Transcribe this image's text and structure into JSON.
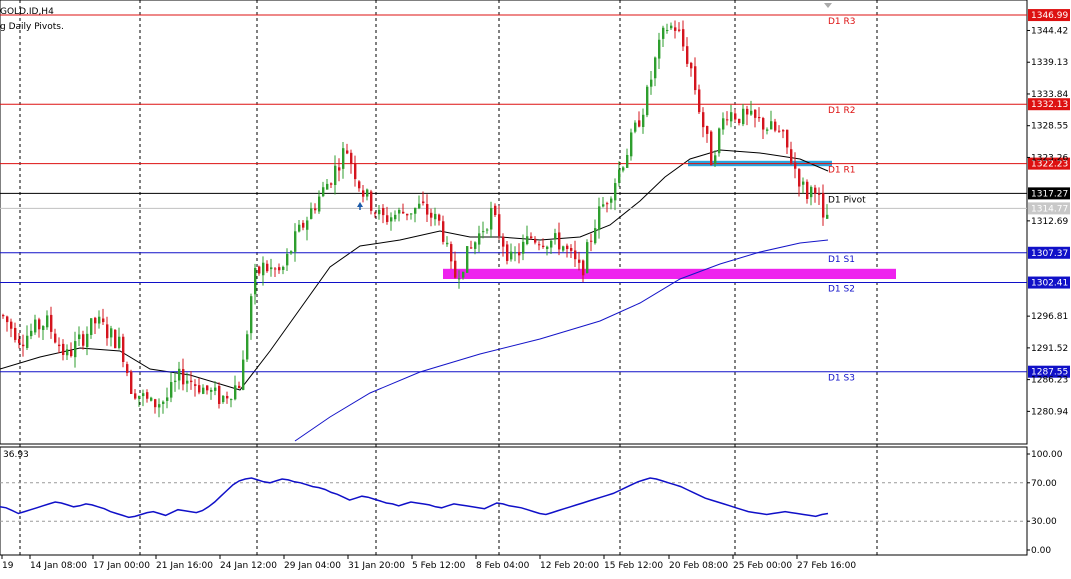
{
  "header": {
    "symbol_label": "GOLD.ID,H4",
    "indicator_label": "g Daily Pivots."
  },
  "colors": {
    "bull": "#2e9e2e",
    "bear": "#d4141e",
    "resistance": "#dd1111",
    "support": "#1010c8",
    "pivot": "#000000",
    "ma_short": "#000000",
    "ma_long": "#1414c8",
    "zone_blue": "#2aa3dc",
    "zone_magenta": "#ee22ee",
    "rsi_line": "#1010c8",
    "grid": "#000000"
  },
  "pivots": [
    {
      "name": "D1 R3",
      "value": 1346.99,
      "tag": "1346.99",
      "kind": "resistance"
    },
    {
      "name": "D1 R2",
      "value": 1332.13,
      "tag": "1332.13",
      "kind": "resistance"
    },
    {
      "name": "D1 R1",
      "value": 1322.23,
      "tag": "1322.23",
      "kind": "resistance"
    },
    {
      "name": "D1 Pivot",
      "value": 1317.27,
      "tag": "1317.27",
      "kind": "pivot"
    },
    {
      "name": "D1 S1",
      "value": 1307.37,
      "tag": "1307.37",
      "kind": "support"
    },
    {
      "name": "D1 S2",
      "value": 1302.41,
      "tag": "1302.41",
      "kind": "support"
    },
    {
      "name": "D1 S3",
      "value": 1287.55,
      "tag": "1287.55",
      "kind": "support"
    }
  ],
  "bid_tag": "1314.77",
  "bid_value": 1314.77,
  "price_axis": {
    "range": [
      1275.5,
      1349.5
    ],
    "ticks": [
      "1344.42",
      "1339.13",
      "1333.84",
      "1328.55",
      "1323.26",
      "1312.69",
      "1296.81",
      "1291.52",
      "1286.23",
      "1280.94"
    ]
  },
  "time_axis": {
    "labels": [
      "19",
      "14 Jan 08:00",
      "17 Jan 00:00",
      "21 Jan 16:00",
      "24 Jan 12:00",
      "29 Jan 04:00",
      "31 Jan 20:00",
      "5 Feb 12:00",
      "8 Feb 04:00",
      "12 Feb 20:00",
      "15 Feb 12:00",
      "20 Feb 08:00",
      "25 Feb 00:00",
      "27 Feb 16:00"
    ]
  },
  "rsi": {
    "current_label": "36.93",
    "range": [
      0,
      100
    ],
    "ticks": [
      "100.00",
      "70.00",
      "30.00",
      "0.00"
    ],
    "levels": [
      70,
      30
    ],
    "values": [
      45,
      44,
      41,
      38,
      40,
      42,
      44,
      46,
      48,
      50,
      49,
      47,
      45,
      46,
      48,
      47,
      45,
      43,
      40,
      38,
      36,
      34,
      35,
      37,
      39,
      40,
      38,
      36,
      39,
      42,
      41,
      40,
      39,
      41,
      45,
      50,
      56,
      62,
      68,
      72,
      74,
      75,
      73,
      71,
      70,
      72,
      74,
      73,
      71,
      70,
      68,
      66,
      65,
      63,
      60,
      58,
      55,
      52,
      54,
      56,
      55,
      53,
      51,
      49,
      48,
      46,
      48,
      50,
      49,
      48,
      47,
      45,
      44,
      46,
      48,
      47,
      46,
      45,
      44,
      43,
      46,
      49,
      48,
      46,
      45,
      44,
      42,
      40,
      38,
      37,
      39,
      41,
      43,
      45,
      47,
      49,
      51,
      53,
      55,
      57,
      59,
      62,
      65,
      68,
      71,
      73,
      75,
      74,
      72,
      70,
      68,
      66,
      63,
      60,
      57,
      54,
      52,
      50,
      48,
      46,
      44,
      42,
      40,
      39,
      38,
      37,
      38,
      39,
      40,
      39,
      38,
      37,
      36,
      35,
      37,
      38
    ],
    "zones": [
      {
        "name": "rsi-resistance",
        "value": 70
      },
      {
        "name": "rsi-support",
        "value": 30
      }
    ]
  },
  "zones": [
    {
      "name": "blue-resistance-zone",
      "from": 1322.7,
      "to": 1321.8,
      "label": ""
    },
    {
      "name": "magenta-support-zone",
      "from": 1304.7,
      "to": 1303.0,
      "label": ""
    }
  ]
}
